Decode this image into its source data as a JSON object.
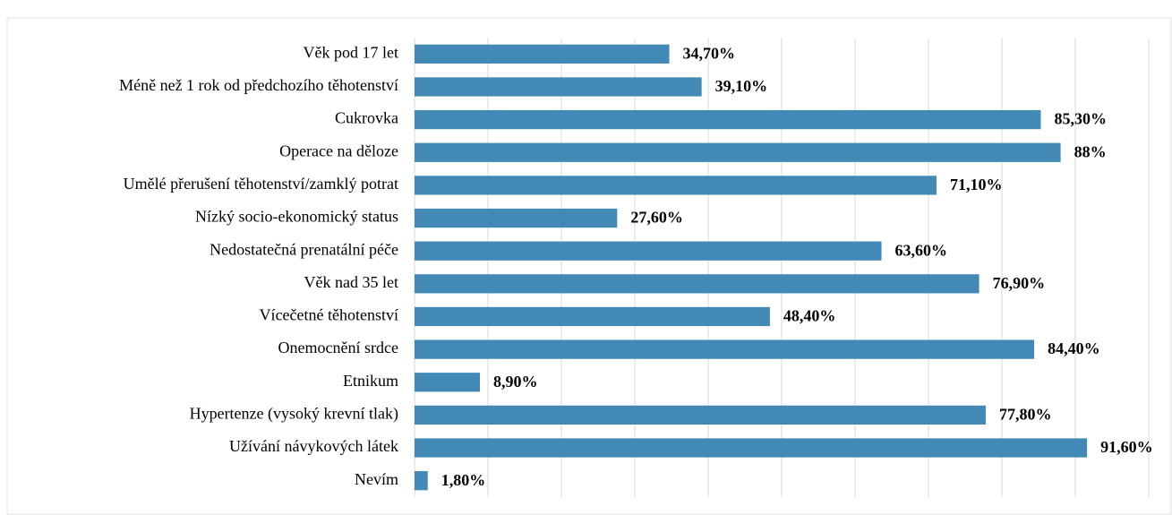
{
  "chart_data": {
    "type": "barh",
    "categories": [
      "Věk pod 17 let",
      "Méně než 1 rok od předchozího těhotenství",
      "Cukrovka",
      "Operace na děloze",
      "Umělé přerušení těhotenství/zamklý potrat",
      "Nízký socio-ekonomický status",
      "Nedostatečná prenatální péče",
      "Věk nad 35 let",
      "Vícečetné těhotenství ",
      "Onemocnění srdce",
      "Etnikum",
      "Hypertenze (vysoký krevní tlak)",
      "Užívání návykových látek ",
      "Nevím"
    ],
    "values": [
      34.7,
      39.1,
      85.3,
      88,
      71.1,
      27.6,
      63.6,
      76.9,
      48.4,
      84.4,
      8.9,
      77.8,
      91.6,
      1.8
    ],
    "value_labels": [
      "34,70%",
      "39,10%",
      "85,30%",
      "88%",
      "71,10%",
      "27,60%",
      "63,60%",
      "76,90%",
      "48,40%",
      "84,40%",
      "8,90%",
      "77,80%",
      "91,60%",
      "1,80%"
    ],
    "color": "#428ab5",
    "xlim": [
      0,
      100
    ],
    "xticks": [
      0,
      10,
      20,
      30,
      40,
      50,
      60,
      70,
      80,
      90,
      100
    ],
    "grid": true
  }
}
